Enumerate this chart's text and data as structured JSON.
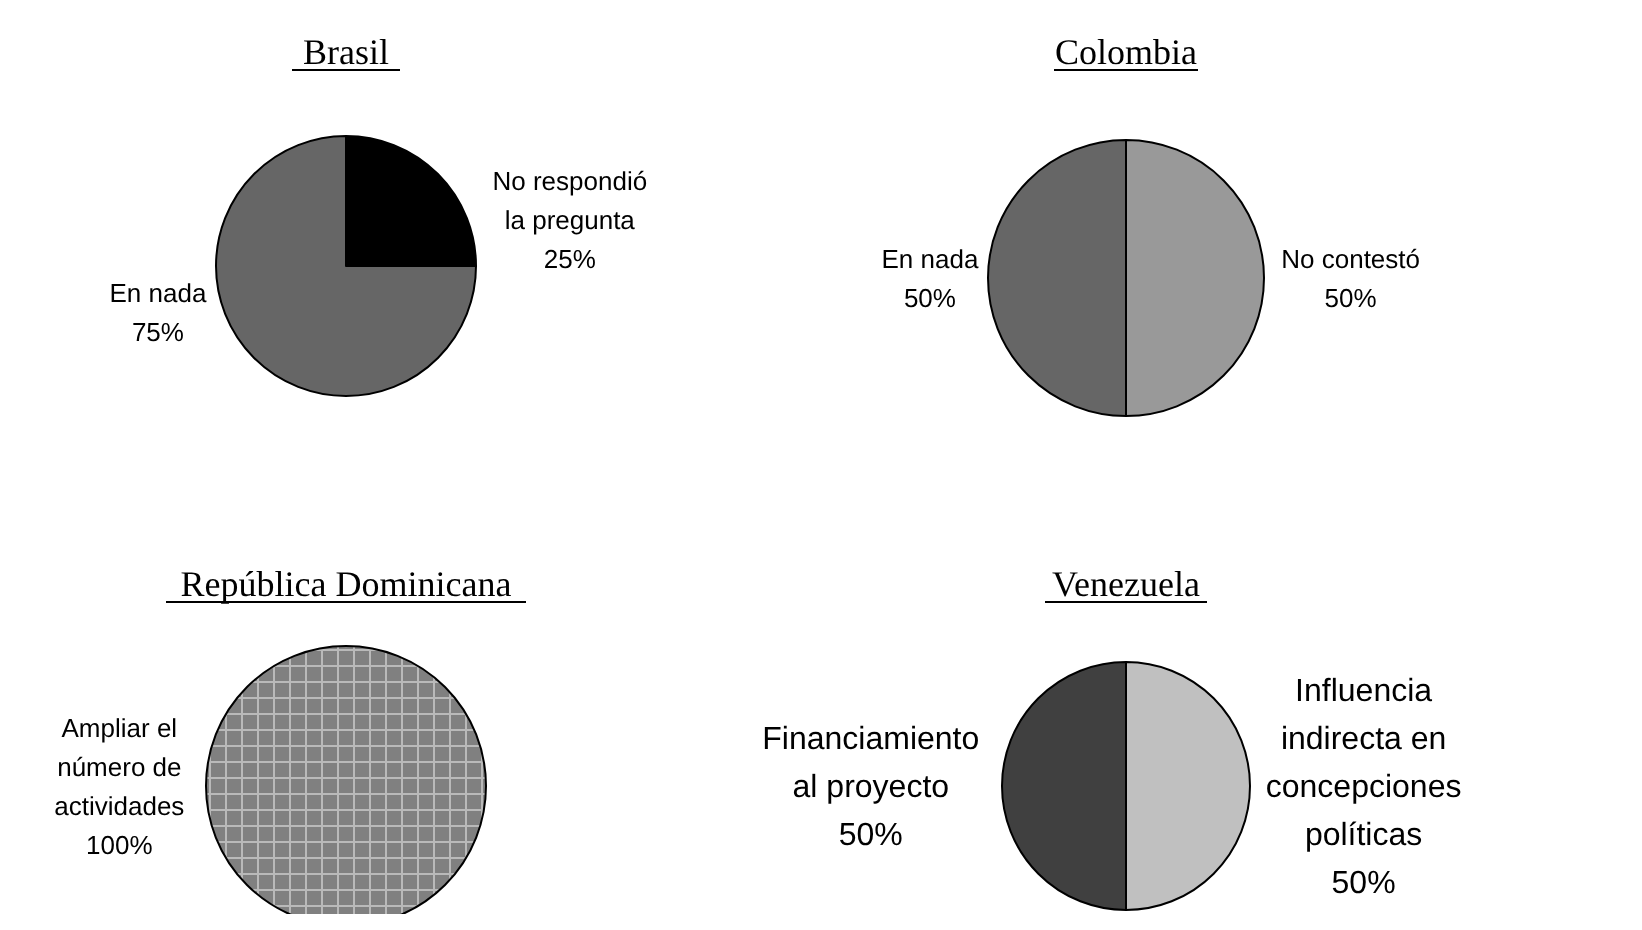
{
  "chart_data": [
    {
      "type": "pie",
      "title": "Brasil",
      "categories": [
        "No respondió la pregunta",
        "En nada"
      ],
      "values": [
        25,
        75
      ],
      "value_labels": [
        "25%",
        "75%"
      ],
      "colors": [
        "#000000",
        "#666666"
      ],
      "data_labels": true
    },
    {
      "type": "pie",
      "title": "Colombia",
      "categories": [
        "No contestó",
        "En nada"
      ],
      "values": [
        50,
        50
      ],
      "value_labels": [
        "50%",
        "50%"
      ],
      "colors": [
        "#999999",
        "#666666"
      ],
      "data_labels": true
    },
    {
      "type": "pie",
      "title": "República Dominicana",
      "categories": [
        "Ampliar el número de actividades"
      ],
      "values": [
        100
      ],
      "value_labels": [
        "100%"
      ],
      "colors": [
        "#808080"
      ],
      "data_labels": true
    },
    {
      "type": "pie",
      "title": "Venezuela",
      "categories": [
        "Influencia indirecta en concepciones políticas",
        "Financiamiento al proyecto"
      ],
      "values": [
        50,
        50
      ],
      "value_labels": [
        "50%",
        "50%"
      ],
      "colors": [
        "#c0c0c0",
        "#404040"
      ],
      "data_labels": true
    }
  ]
}
